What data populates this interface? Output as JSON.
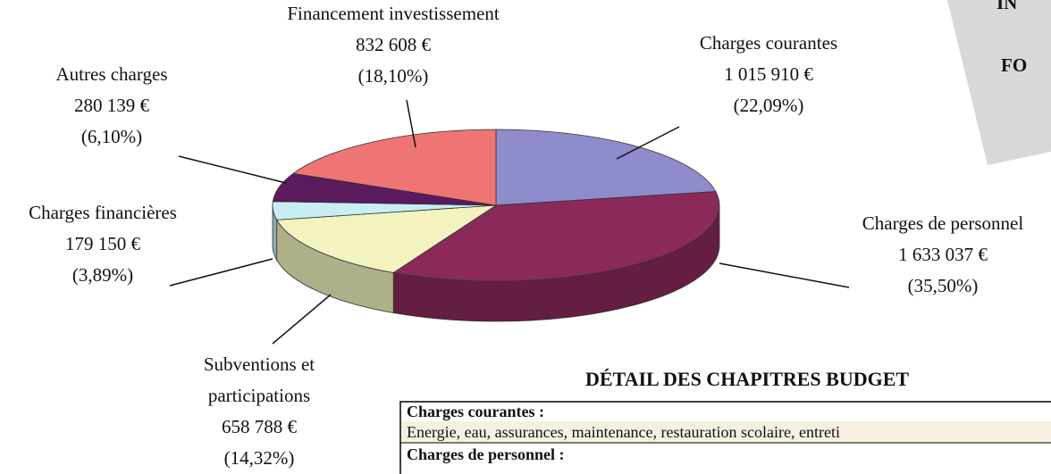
{
  "chart_data": {
    "type": "pie",
    "categories": [
      "Charges courantes",
      "Charges de personnel",
      "Subventions et participations",
      "Charges financières",
      "Autres charges",
      "Financement investissement"
    ],
    "values": [
      1015910,
      1633037,
      658788,
      179150,
      280139,
      832608
    ],
    "value_labels": [
      "1 015 910 €",
      "1 633 037 €",
      "658 788 €",
      "179 150 €",
      "280 139 €",
      "832 608 €"
    ],
    "percent_labels": [
      "(22,09%)",
      "(35,50%)",
      "(14,32%)",
      "(3,89%)",
      "(6,10%)",
      "(18,10%)"
    ],
    "colors": [
      "#8f8ccc",
      "#8b2a5a",
      "#f3f3c0",
      "#c8eef4",
      "#5a1a5e",
      "#ef7474"
    ]
  },
  "side_box": {
    "lines": [
      "IN",
      "FO"
    ]
  },
  "heading": "DÉTAIL DES CHAPITRES BUDGET",
  "table": {
    "rows": [
      "Charges courantes :",
      "Energie, eau, assurances, maintenance, restauration scolaire, entreti",
      "Charges de personnel :"
    ]
  }
}
